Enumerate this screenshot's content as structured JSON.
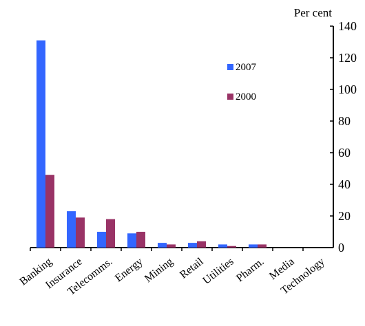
{
  "chart_data": {
    "type": "bar",
    "ylabel": "Per cent",
    "ylim": [
      0,
      140
    ],
    "yticks": [
      0,
      20,
      40,
      60,
      80,
      100,
      120,
      140
    ],
    "y_axis_side": "right",
    "grid": false,
    "legend_position": "center-right",
    "categories": [
      "Banking",
      "Insurance",
      "Telecomms.",
      "Energy",
      "Mining",
      "Retail",
      "Utilities",
      "Pharm.",
      "Media",
      "Technology"
    ],
    "series": [
      {
        "name": "2007",
        "color": "#3366ff",
        "values": [
          131,
          23,
          10,
          9,
          3,
          3,
          2,
          2,
          0,
          0
        ]
      },
      {
        "name": "2000",
        "color": "#993366",
        "values": [
          46,
          19,
          18,
          10,
          2,
          4,
          1,
          2,
          0,
          0
        ]
      }
    ]
  }
}
